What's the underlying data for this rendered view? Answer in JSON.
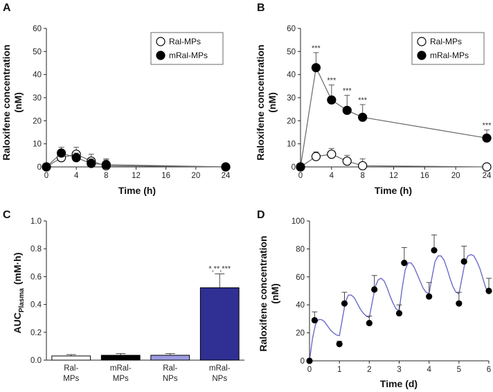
{
  "chart_data": [
    {
      "panel": "A",
      "type": "line",
      "xlabel": "Time (h)",
      "ylabel": "Raloxifene concentration (nM)",
      "xlim": [
        0,
        24
      ],
      "ylim": [
        0,
        60
      ],
      "xticks": [
        0,
        4,
        8,
        12,
        16,
        20,
        24
      ],
      "yticks": [
        0,
        10,
        20,
        30,
        40,
        50,
        60
      ],
      "legend": {
        "position": "top-right",
        "entries": [
          "Ral-MPs",
          "mRal-MPs"
        ]
      },
      "series": [
        {
          "name": "Ral-MPs",
          "marker": "open",
          "x": [
            0,
            2,
            4,
            6,
            8,
            24
          ],
          "y": [
            0,
            4,
            5.5,
            2.5,
            0.5,
            0
          ],
          "err": [
            0,
            2,
            3,
            3,
            3,
            0.8
          ]
        },
        {
          "name": "mRal-MPs",
          "marker": "filled",
          "x": [
            0,
            2,
            4,
            6,
            8,
            24
          ],
          "y": [
            0,
            6,
            4,
            1.5,
            1,
            0
          ],
          "err": [
            0,
            2.5,
            2,
            2,
            2,
            0.5
          ]
        }
      ]
    },
    {
      "panel": "B",
      "type": "line",
      "xlabel": "Time (h)",
      "ylabel": "Raloxifene concentration (nM)",
      "xlim": [
        0,
        24
      ],
      "ylim": [
        0,
        60
      ],
      "xticks": [
        0,
        4,
        8,
        12,
        16,
        20,
        24
      ],
      "yticks": [
        0,
        10,
        20,
        30,
        40,
        50,
        60
      ],
      "legend": {
        "position": "top-right",
        "entries": [
          "Ral-MPs",
          "mRal-MPs"
        ]
      },
      "series": [
        {
          "name": "Ral-MPs",
          "marker": "open",
          "x": [
            0,
            2,
            4,
            6,
            8,
            24
          ],
          "y": [
            0,
            4.5,
            5.5,
            2.5,
            0.5,
            0
          ],
          "err": [
            0,
            2,
            2.5,
            2.5,
            3,
            0.5
          ]
        },
        {
          "name": "mRal-MPs",
          "marker": "filled",
          "x": [
            0,
            2,
            4,
            6,
            8,
            24
          ],
          "y": [
            0,
            43,
            29,
            24.5,
            21.5,
            12.5
          ],
          "err": [
            0,
            6.5,
            6.5,
            6.5,
            5.5,
            3.5
          ]
        }
      ],
      "annotations": [
        {
          "x": 2,
          "y": 49.5,
          "text": "***"
        },
        {
          "x": 4,
          "y": 35.5,
          "text": "***"
        },
        {
          "x": 6,
          "y": 31,
          "text": "***"
        },
        {
          "x": 8,
          "y": 27,
          "text": "***"
        },
        {
          "x": 24,
          "y": 16,
          "text": "***"
        }
      ]
    },
    {
      "panel": "C",
      "type": "bar",
      "ylabel": "AUC",
      "ylabel_sub": "Plasma",
      "ylabel_unit": "(mM·h)",
      "ylim": [
        0,
        1.0
      ],
      "yticks": [
        "0.0",
        "0.2",
        "0.4",
        "0.6",
        "0.8",
        "1.0"
      ],
      "categories": [
        [
          "Ral-",
          "MPs"
        ],
        [
          "mRal-",
          "MPs"
        ],
        [
          "Ral-",
          "NPs"
        ],
        [
          "mRal-",
          "NPs"
        ]
      ],
      "values": [
        0.03,
        0.035,
        0.035,
        0.52
      ],
      "errors": [
        0.01,
        0.012,
        0.012,
        0.1
      ],
      "colors": [
        "#ffffff",
        "#000000",
        "#9b9be0",
        "#303094"
      ],
      "annotations": [
        {
          "bar": 3,
          "text": "*,**,***"
        }
      ]
    },
    {
      "panel": "D",
      "type": "scatter",
      "xlabel": "Time (d)",
      "ylabel": "Raloxifene concentration (nM)",
      "xlim": [
        0,
        6
      ],
      "ylim": [
        0,
        100
      ],
      "xticks": [
        0,
        1,
        2,
        3,
        4,
        5,
        6
      ],
      "yticks": [
        0,
        20,
        40,
        60,
        80,
        100
      ],
      "points": {
        "x": [
          0,
          0.17,
          1.0,
          1.17,
          2.0,
          2.17,
          3.0,
          3.17,
          4.0,
          4.17,
          5.0,
          5.17,
          6.0
        ],
        "y": [
          0,
          29,
          12,
          41,
          27,
          51,
          34,
          70,
          46,
          79,
          41,
          71,
          50
        ],
        "err": [
          0,
          6,
          2,
          8,
          5,
          10,
          6,
          11,
          10,
          11,
          8,
          11,
          9
        ]
      },
      "fit_color": "#6a6ac8",
      "fit": {
        "x": [
          0,
          0.1,
          0.2,
          0.3,
          0.4,
          0.5,
          0.6,
          0.7,
          0.8,
          0.9,
          1.0,
          1.1,
          1.2,
          1.3,
          1.4,
          1.5,
          1.6,
          1.7,
          1.8,
          1.9,
          2.0,
          2.1,
          2.2,
          2.3,
          2.4,
          2.5,
          2.6,
          2.7,
          2.8,
          2.9,
          3.0,
          3.1,
          3.2,
          3.3,
          3.4,
          3.5,
          3.6,
          3.7,
          3.8,
          3.9,
          4.0,
          4.1,
          4.2,
          4.3,
          4.4,
          4.5,
          4.6,
          4.7,
          4.8,
          4.9,
          5.0,
          5.1,
          5.2,
          5.3,
          5.4,
          5.5,
          5.6,
          5.7,
          5.8,
          5.9,
          6.0
        ],
        "y": [
          0,
          16,
          26,
          29.5,
          29.5,
          28,
          25,
          22,
          20,
          18.5,
          18,
          30,
          42,
          47,
          47,
          45,
          41,
          37,
          34,
          32,
          31,
          42,
          53,
          58,
          59,
          57,
          52,
          46,
          41,
          37,
          36,
          52,
          65,
          70,
          70,
          67,
          62,
          57,
          52,
          49,
          48,
          60,
          71,
          75,
          75,
          72,
          66,
          59,
          53,
          49,
          48,
          59,
          70,
          75,
          76,
          75,
          71,
          66,
          59,
          52,
          48
        ]
      }
    }
  ],
  "panel_labels": [
    "A",
    "B",
    "C",
    "D"
  ]
}
